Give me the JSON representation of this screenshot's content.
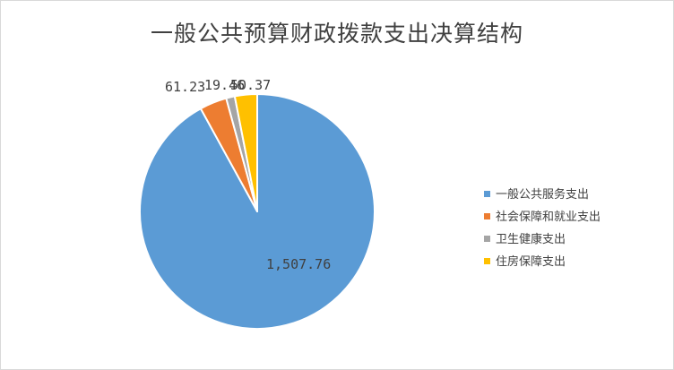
{
  "chart_data": {
    "type": "pie",
    "title": "一般公共预算财政拨款支出决算结构",
    "categories": [
      "一般公共服务支出",
      "社会保障和就业支出",
      "卫生健康支出",
      "住房保障支出"
    ],
    "values": [
      1507.76,
      61.23,
      19.46,
      50.37
    ],
    "data_labels": [
      "1,507.76",
      "61.23",
      "19.46",
      "50.37"
    ],
    "colors": [
      "#5b9bd5",
      "#ed7d31",
      "#a5a5a5",
      "#ffc000"
    ],
    "legend_position": "right",
    "start_angle_deg": 0,
    "direction": "clockwise"
  }
}
